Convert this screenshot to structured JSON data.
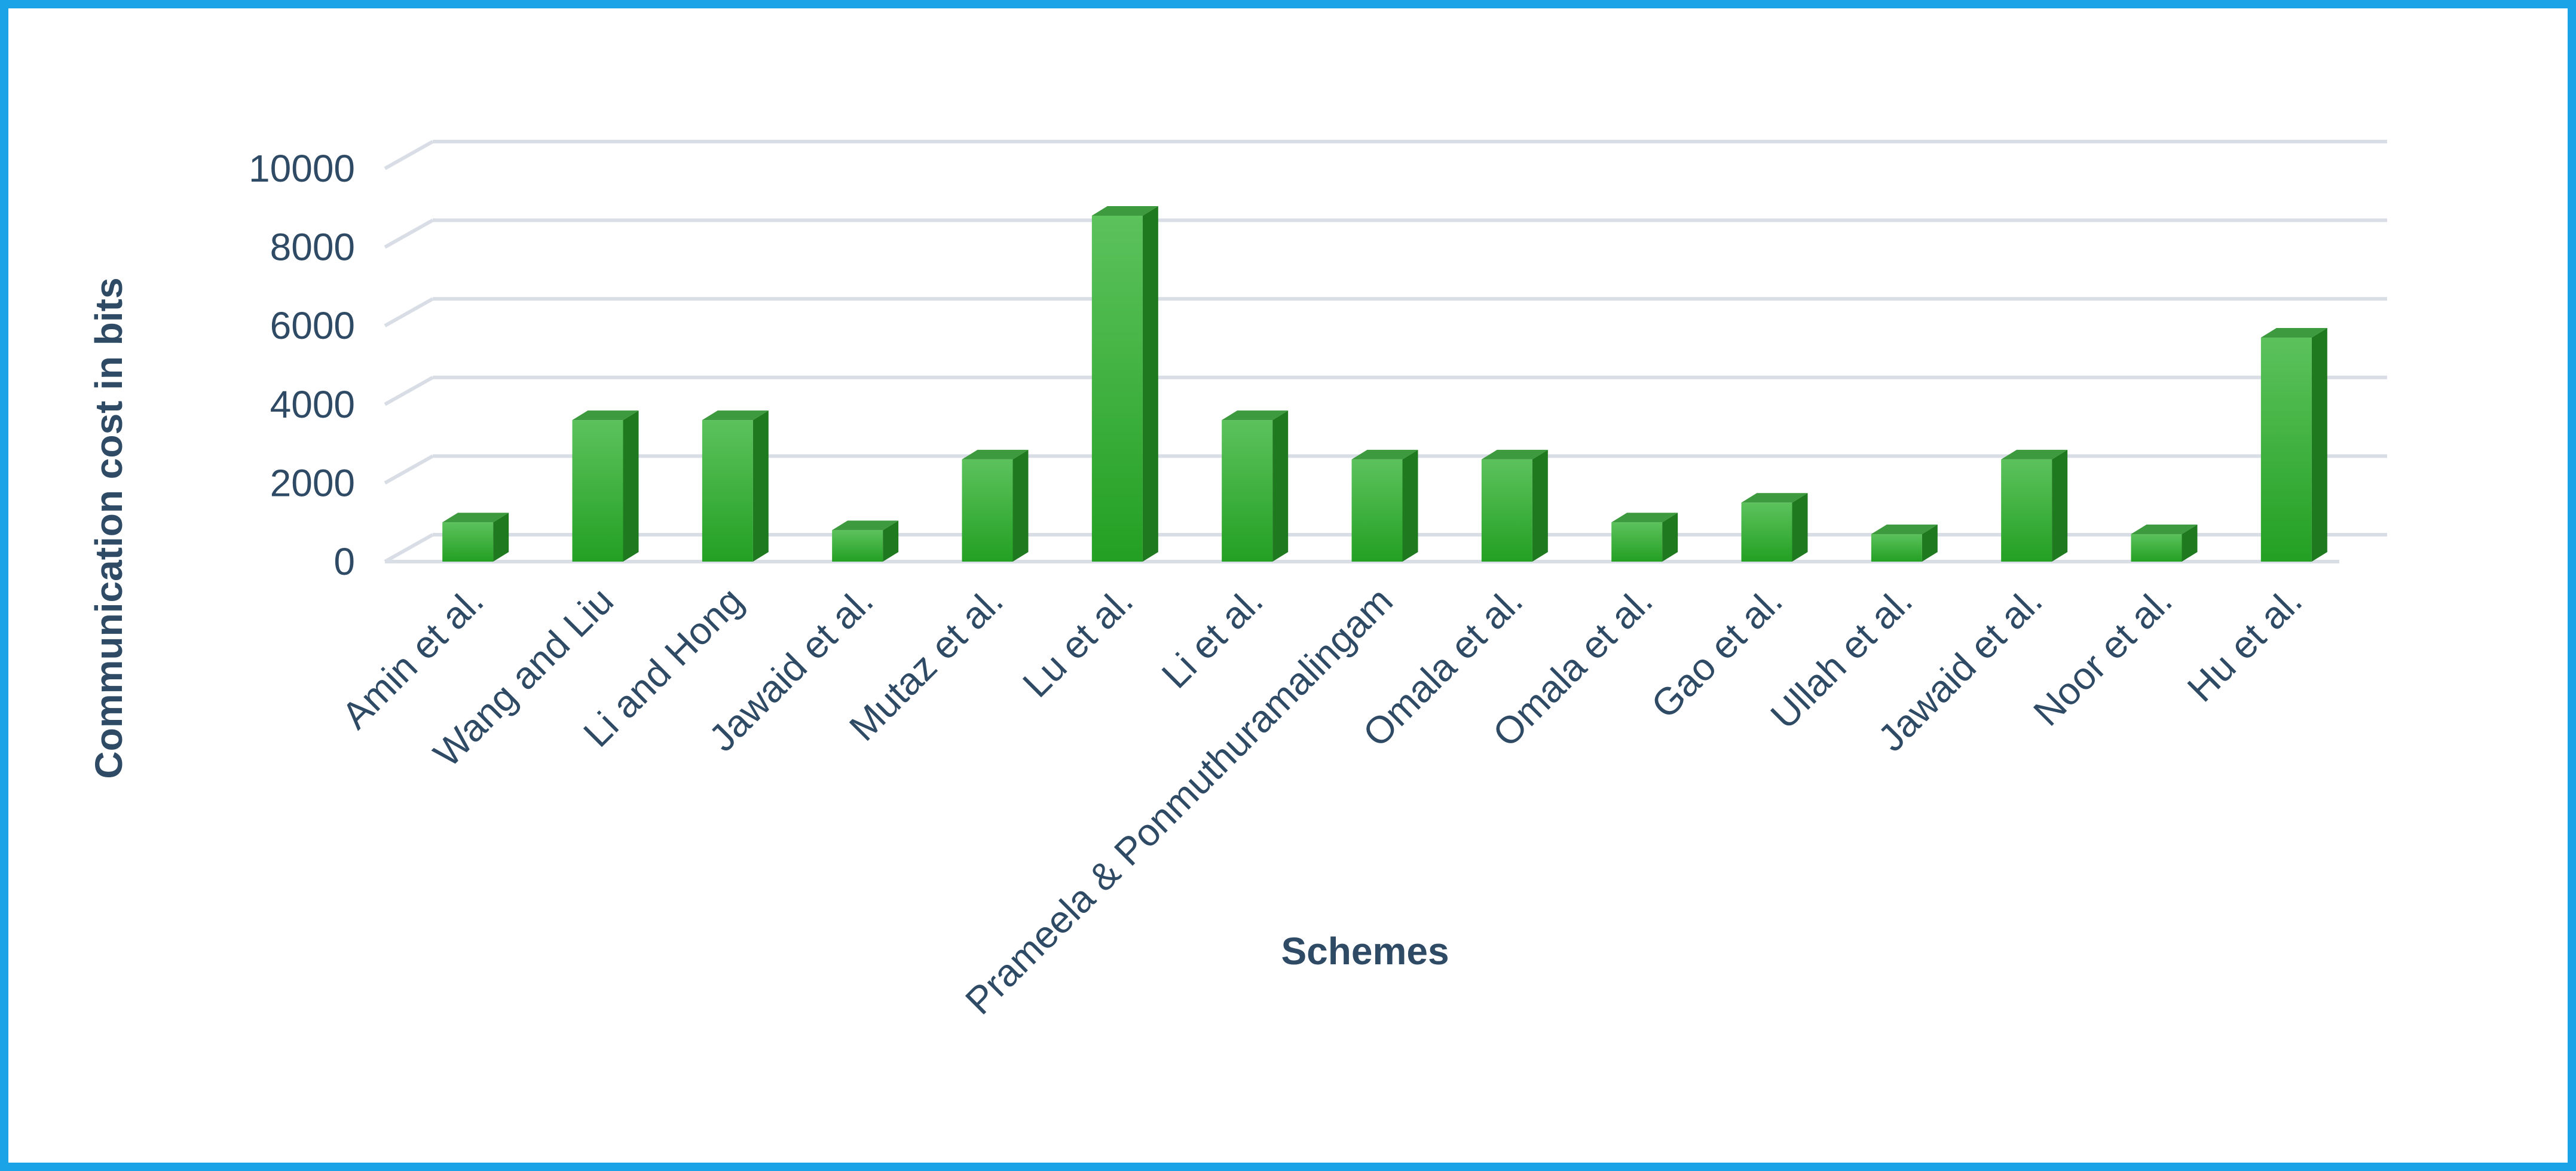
{
  "chart_data": {
    "type": "bar",
    "title": "",
    "xlabel": "Schemes",
    "ylabel": "Communication cost in bits",
    "categories": [
      "Amin et al.",
      "Wang and Liu",
      "Li and Hong",
      "Jawaid et al.",
      "Mutaz et al.",
      "Lu et al.",
      "Li et al.",
      "Prameela & Ponmuthuramalingam",
      "Omala et al.",
      "Omala et al.",
      "Gao et al.",
      "Ullah et al.",
      "Jawaid et al.",
      "Noor et al.",
      "Hu et al."
    ],
    "values": [
      1000,
      3600,
      3600,
      800,
      2600,
      8800,
      3600,
      2600,
      2600,
      1000,
      1500,
      700,
      2600,
      700,
      5700
    ],
    "ylim": [
      0,
      10000
    ],
    "yticks": [
      0,
      2000,
      4000,
      6000,
      8000,
      10000
    ],
    "grid": true,
    "legend": "none",
    "bar_color": "#2fae2f",
    "bar_side_color": "#1f7a1f",
    "bar_top_color": "#3e9a3e",
    "gridline_color": "#d9dde6",
    "text_color": "#2e4a64",
    "border_color": "#1aa3e6"
  }
}
